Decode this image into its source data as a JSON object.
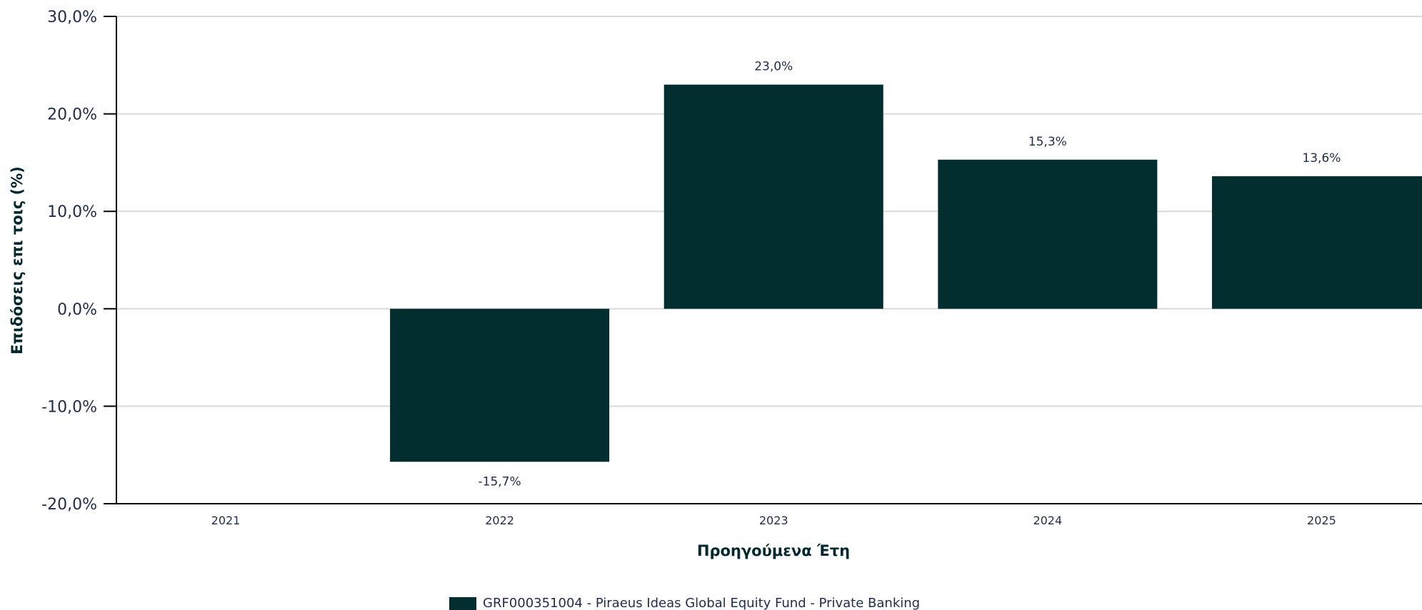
{
  "chart_data": {
    "type": "bar",
    "categories": [
      "2021",
      "2022",
      "2023",
      "2024",
      "2025"
    ],
    "series": [
      {
        "name": "GRF000351004 - Piraeus Ideas Global Equity Fund - Private Banking",
        "values": [
          null,
          -15.7,
          23.0,
          15.3,
          13.6
        ],
        "labels": [
          "",
          "-15,7%",
          "23,0%",
          "15,3%",
          "13,6%"
        ]
      }
    ],
    "xlabel": "Προηγούμενα Έτη",
    "ylabel": "Επιδόσεις επι τοις (%)",
    "ylim": [
      -20,
      30
    ],
    "yticks": [
      30,
      20,
      10,
      0,
      -10,
      -20
    ],
    "ytick_labels": [
      "30,0%",
      "20,0%",
      "10,0%",
      "0,0%",
      "-10,0%",
      "-20,0%"
    ],
    "grid": true,
    "legend": "bottom-center",
    "colors": {
      "bar": "#022e30",
      "grid": "#d9d9d9",
      "axis": "#000000"
    }
  }
}
